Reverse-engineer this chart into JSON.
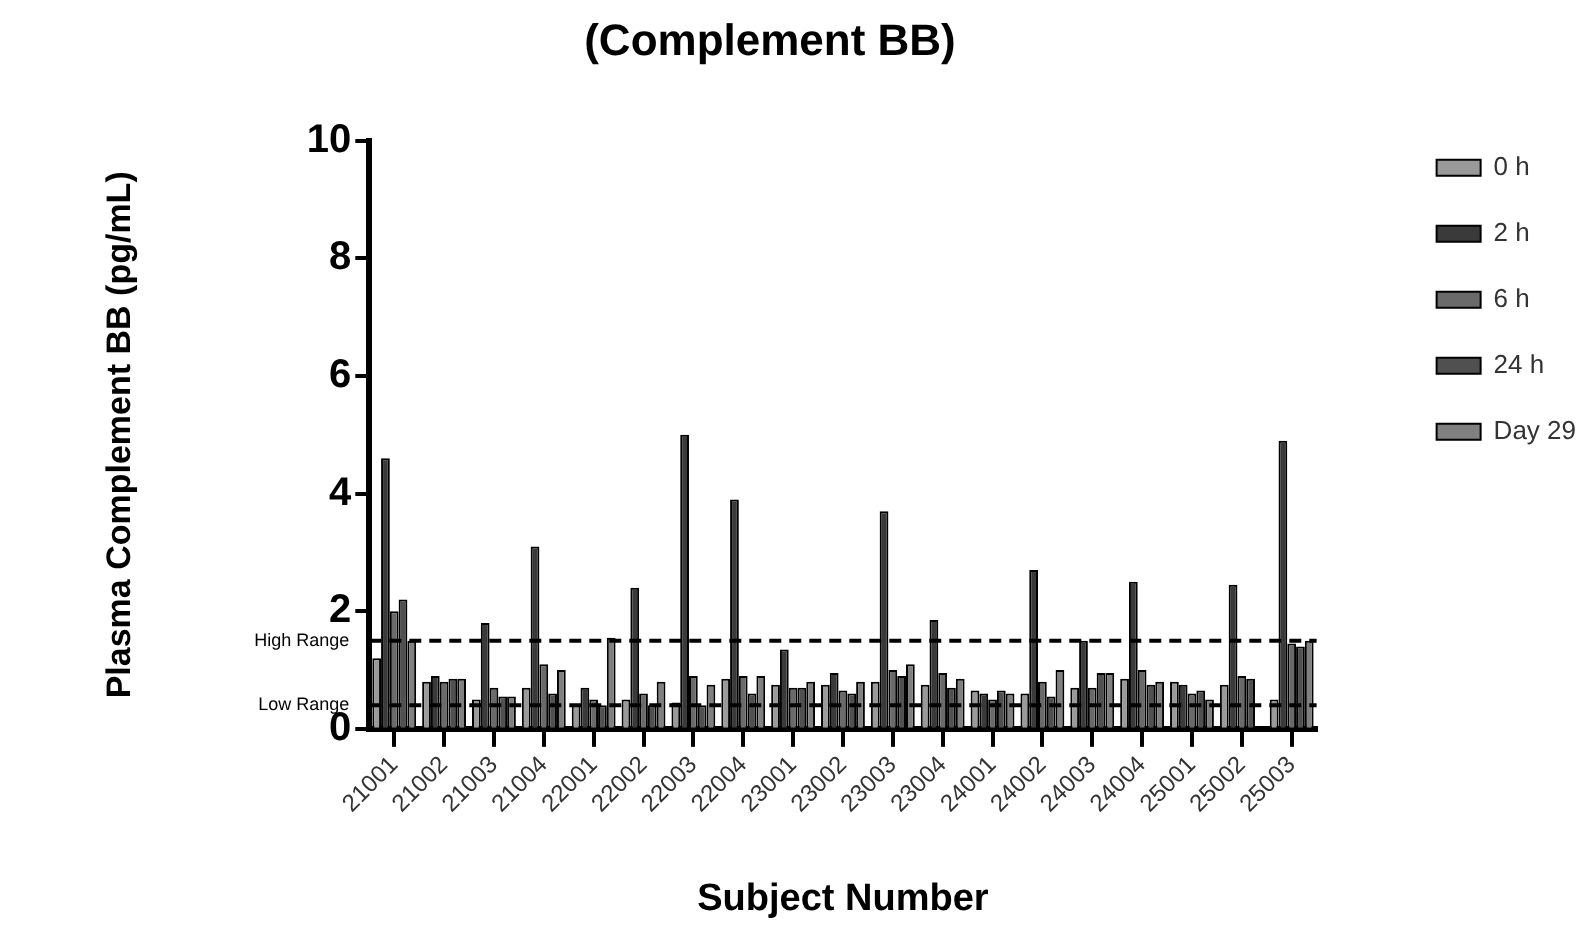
{
  "chart_data": {
    "type": "bar",
    "title": "(Complement BB)",
    "xlabel": "Subject Number",
    "ylabel": "Plasma Complement BB (pg/mL)",
    "categories": [
      "21001",
      "21002",
      "21003",
      "21004",
      "22001",
      "22002",
      "22003",
      "22004",
      "23001",
      "23002",
      "23003",
      "23004",
      "24001",
      "24002",
      "24003",
      "24004",
      "25001",
      "25002",
      "25003"
    ],
    "series": [
      {
        "name": "0 h",
        "color": "#9a9a9a",
        "values": [
          1.2,
          0.8,
          0.5,
          0.7,
          0.4,
          0.5,
          0.45,
          0.85,
          0.75,
          0.75,
          0.8,
          0.75,
          0.65,
          0.6,
          0.7,
          0.85,
          0.8,
          0.75,
          0.5
        ]
      },
      {
        "name": "2 h",
        "color": "#3a3a3a",
        "values": [
          4.6,
          0.9,
          1.8,
          3.1,
          0.7,
          2.4,
          5.0,
          3.9,
          1.35,
          0.95,
          3.7,
          1.85,
          0.6,
          2.7,
          1.5,
          2.5,
          0.75,
          2.45,
          4.9
        ]
      },
      {
        "name": "6 h",
        "color": "#6a6a6a",
        "values": [
          2.0,
          0.8,
          0.7,
          1.1,
          0.5,
          0.6,
          0.9,
          0.9,
          0.7,
          0.65,
          1.0,
          0.95,
          0.5,
          0.8,
          0.7,
          1.0,
          0.6,
          0.9,
          1.45
        ]
      },
      {
        "name": "24 h",
        "color": "#505050",
        "values": [
          2.2,
          0.85,
          0.55,
          0.6,
          0.4,
          0.4,
          0.4,
          0.6,
          0.7,
          0.6,
          0.9,
          0.7,
          0.65,
          0.55,
          0.95,
          0.75,
          0.65,
          0.85,
          1.4
        ]
      },
      {
        "name": "Day 29",
        "color": "#808080",
        "values": [
          1.5,
          0.85,
          0.55,
          1.0,
          1.55,
          0.8,
          0.75,
          0.9,
          0.8,
          0.8,
          1.1,
          0.85,
          0.6,
          1.0,
          0.95,
          0.8,
          0.5,
          null,
          1.5
        ]
      }
    ],
    "ylim": [
      0,
      10
    ],
    "yticks": [
      0,
      2,
      4,
      6,
      8,
      10
    ],
    "ref_lines": [
      {
        "axis": "y",
        "value": 1.5,
        "label": "High Range",
        "line_style": "dashed",
        "color": "#000000"
      },
      {
        "axis": "y",
        "value": 0.4,
        "label": "Low Range",
        "line_style": "dashed",
        "color": "#000000"
      }
    ],
    "legend": "top right"
  }
}
